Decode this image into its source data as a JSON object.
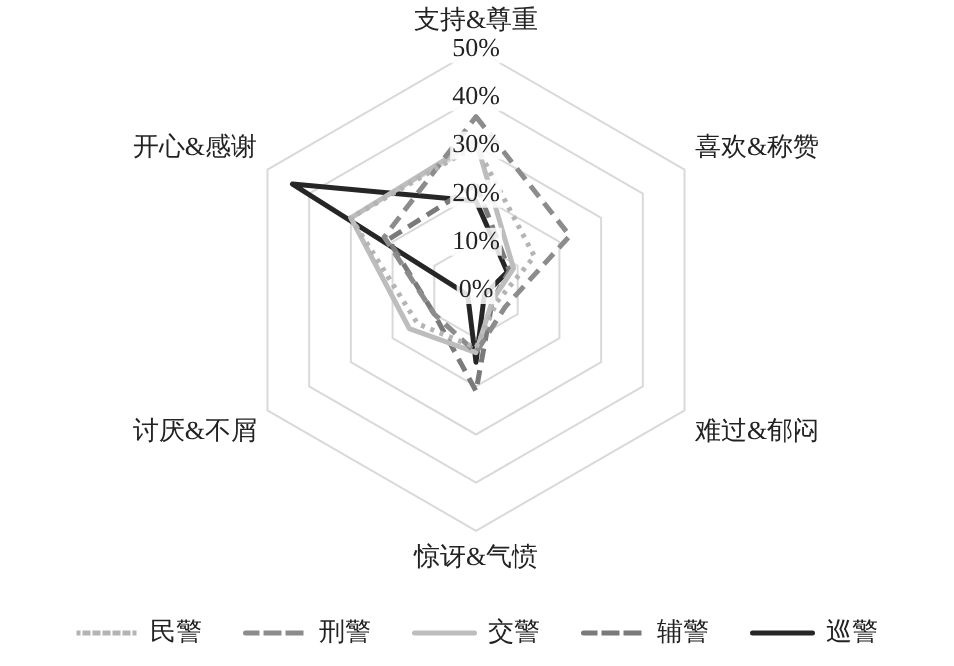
{
  "chart_data": {
    "type": "radar",
    "categories": [
      "支持&尊重",
      "喜欢&称赞",
      "难过&郁闷",
      "惊讶&气愤",
      "讨厌&不屑",
      "开心&感谢"
    ],
    "series": [
      {
        "name": "民警",
        "color": "#b4b4b4",
        "line_style": "dotted",
        "values": [
          30,
          14,
          5,
          12,
          14,
          30
        ]
      },
      {
        "name": "刑警",
        "color": "#8c8c8c",
        "line_style": "dashed",
        "values": [
          36,
          22.5,
          7,
          13,
          10,
          22
        ]
      },
      {
        "name": "交警",
        "color": "#bdbdbd",
        "line_style": "solid",
        "values": [
          31,
          9,
          4,
          13,
          16,
          30
        ]
      },
      {
        "name": "辅警",
        "color": "#7a7a7a",
        "line_style": "dashed",
        "values": [
          22,
          8,
          4,
          21,
          10,
          21
        ]
      },
      {
        "name": "巡警",
        "color": "#262626",
        "line_style": "solid",
        "values": [
          18.5,
          7.5,
          2,
          15,
          2,
          44
        ]
      }
    ],
    "ylim": [
      0,
      50
    ],
    "yticks": [
      {
        "value": 0,
        "label": "0%"
      },
      {
        "value": 10,
        "label": "10%"
      },
      {
        "value": 20,
        "label": "20%"
      },
      {
        "value": 30,
        "label": "30%"
      },
      {
        "value": 40,
        "label": "40%"
      },
      {
        "value": 50,
        "label": "50%"
      }
    ],
    "grid": true,
    "legend": "bottom",
    "marker": "none"
  }
}
